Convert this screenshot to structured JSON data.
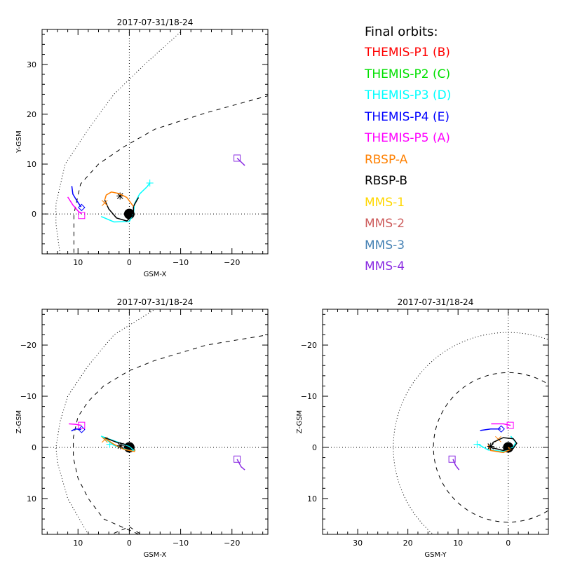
{
  "legend": {
    "title": "Final orbits:",
    "items": [
      {
        "label": "THEMIS-P1 (B)",
        "color": "#ff0000"
      },
      {
        "label": "THEMIS-P2 (C)",
        "color": "#00e000"
      },
      {
        "label": "THEMIS-P3 (D)",
        "color": "#00ffff"
      },
      {
        "label": "THEMIS-P4 (E)",
        "color": "#0000ff"
      },
      {
        "label": "THEMIS-P5 (A)",
        "color": "#ff00ff"
      },
      {
        "label": "RBSP-A",
        "color": "#ff8000"
      },
      {
        "label": "RBSP-B",
        "color": "#000000"
      },
      {
        "label": "MMS-1",
        "color": "#ffd700"
      },
      {
        "label": "MMS-2",
        "color": "#cd5c5c"
      },
      {
        "label": "MMS-3",
        "color": "#4682b4"
      },
      {
        "label": "MMS-4",
        "color": "#8a2be2"
      }
    ]
  },
  "chart_data": [
    {
      "type": "line",
      "title": "2017-07-31/18-24",
      "xlabel": "GSM-X",
      "ylabel": "Y-GSM",
      "xlim": [
        17,
        -27
      ],
      "ylim": [
        37,
        -8
      ],
      "xticks": [
        10,
        0,
        -10,
        -20
      ],
      "yticks": [
        0,
        10,
        20,
        30
      ],
      "grid": "dotted zero lines",
      "series": [
        {
          "name": "THEMIS-P3 (D)",
          "color": "#00ffff",
          "points": [
            [
              5.5,
              -0.5
            ],
            [
              3,
              -1.6
            ],
            [
              0,
              -1.5
            ],
            [
              -0.8,
              0
            ],
            [
              -1,
              2
            ],
            [
              -2,
              4
            ],
            [
              -3.5,
              5.5
            ],
            [
              -4,
              6.2
            ]
          ],
          "end": [
            -4,
            6.2
          ],
          "marker": "plus"
        },
        {
          "name": "RBSP-B",
          "color": "#000000",
          "points": [
            [
              4.8,
              2.8
            ],
            [
              4,
              1
            ],
            [
              2.5,
              -0.8
            ],
            [
              0.5,
              -1.4
            ],
            [
              -0.8,
              -0.2
            ],
            [
              -0.8,
              1.5
            ],
            [
              -1.5,
              2.8
            ],
            [
              -1.8,
              3.3
            ]
          ],
          "end": [
            1.8,
            3.6
          ],
          "marker": "asterisk"
        },
        {
          "name": "RBSP-A",
          "color": "#ff8000",
          "points": [
            [
              4.8,
              2.8
            ],
            [
              4.5,
              3.8
            ],
            [
              3.5,
              4.4
            ],
            [
              2,
              4.1
            ],
            [
              0.5,
              3.3
            ],
            [
              -0.8,
              1.5
            ]
          ],
          "end": [
            4.8,
            2.2
          ],
          "marker": "x"
        },
        {
          "name": "THEMIS-P5 (A)",
          "color": "#ff00ff",
          "points": [
            [
              12,
              3.4
            ],
            [
              11,
              1.8
            ],
            [
              10,
              0.6
            ],
            [
              9.3,
              0
            ]
          ],
          "end": [
            9.3,
            -0.3
          ],
          "marker": "square"
        },
        {
          "name": "THEMIS-P4 (E)",
          "color": "#0000ff",
          "points": [
            [
              11.2,
              5.6
            ],
            [
              11,
              4
            ],
            [
              10.2,
              2.6
            ],
            [
              9.4,
              1.4
            ]
          ],
          "end": [
            9.3,
            1.3
          ],
          "marker": "diamond"
        },
        {
          "name": "MMS-4",
          "color": "#8a2be2",
          "points": [
            [
              -22.5,
              9.7
            ],
            [
              -21.5,
              10.7
            ],
            [
              -21,
              11.2
            ]
          ],
          "end": [
            -21,
            11.2
          ],
          "marker": "square"
        }
      ],
      "boundaries": {
        "magnetopause": [
          [
            10.8,
            -7.8
          ],
          [
            10.8,
            0
          ],
          [
            9.5,
            6
          ],
          [
            6,
            10
          ],
          [
            1,
            13.5
          ],
          [
            -5,
            17
          ],
          [
            -15,
            20.3
          ],
          [
            -27,
            23.7
          ]
        ],
        "bow_shock": [
          [
            13.5,
            -8
          ],
          [
            14.3,
            -2
          ],
          [
            14.3,
            2
          ],
          [
            12.5,
            10
          ],
          [
            8,
            17
          ],
          [
            3,
            24
          ],
          [
            -3,
            30
          ],
          [
            -10,
            36.5
          ]
        ]
      }
    },
    {
      "type": "line",
      "title": "2017-07-31/18-24",
      "xlabel": "GSM-X",
      "ylabel": "Z-GSM",
      "xlim": [
        17,
        -27
      ],
      "ylim": [
        -27,
        17
      ],
      "xticks": [
        10,
        0,
        -10,
        -20
      ],
      "yticks": [
        10,
        0,
        -10,
        -20
      ],
      "grid": "dotted zero lines",
      "series": [
        {
          "name": "THEMIS-P3 (D)",
          "color": "#00ffff",
          "points": [
            [
              5.5,
              -2.2
            ],
            [
              3,
              -1.3
            ],
            [
              0,
              -0.2
            ],
            [
              -1,
              0.6
            ],
            [
              0,
              0.6
            ],
            [
              3,
              -0.4
            ],
            [
              5.5,
              -2.2
            ]
          ],
          "end": [
            3.8,
            -0.6
          ],
          "marker": "plus"
        },
        {
          "name": "RBSP-A",
          "color": "#ff8000",
          "points": [
            [
              4.8,
              -1.8
            ],
            [
              3,
              -0.6
            ],
            [
              1,
              0.4
            ],
            [
              -1,
              0.8
            ],
            [
              -1.1,
              0.4
            ]
          ],
          "end": [
            4.8,
            -1.5
          ],
          "marker": "x"
        },
        {
          "name": "RBSP-B",
          "color": "#000000",
          "points": [
            [
              4.8,
              -1.9
            ],
            [
              2.5,
              -1
            ],
            [
              0,
              -0.4
            ],
            [
              -1,
              0.4
            ]
          ],
          "end": [
            1.7,
            -0.3
          ],
          "marker": "asterisk"
        },
        {
          "name": "THEMIS-P4 (E)",
          "color": "#0000ff",
          "points": [
            [
              11.3,
              -3.2
            ],
            [
              10.5,
              -3.6
            ],
            [
              9.4,
              -3.5
            ]
          ],
          "end": [
            9.3,
            -3.5
          ],
          "marker": "diamond"
        },
        {
          "name": "THEMIS-P5 (A)",
          "color": "#ff00ff",
          "points": [
            [
              11.8,
              -4.6
            ],
            [
              10.5,
              -4.5
            ],
            [
              9.3,
              -4.3
            ]
          ],
          "end": [
            9.3,
            -4.3
          ],
          "marker": "square"
        },
        {
          "name": "MMS-4",
          "color": "#8a2be2",
          "points": [
            [
              -22.5,
              4.4
            ],
            [
              -21.8,
              3.8
            ],
            [
              -21,
              2.3
            ]
          ],
          "end": [
            -21,
            2.3
          ],
          "marker": "square"
        }
      ],
      "boundaries": {
        "magnetopause": [
          [
            3,
            16.8
          ],
          [
            0,
            15.5
          ],
          [
            -3,
            17.5
          ],
          [
            5,
            14
          ],
          [
            8,
            10
          ],
          [
            10,
            6
          ],
          [
            10.9,
            2
          ],
          [
            10.9,
            -2
          ],
          [
            10,
            -6
          ],
          [
            8,
            -9
          ],
          [
            5,
            -12
          ],
          [
            0,
            -15
          ],
          [
            -5,
            -17
          ],
          [
            -15,
            -20
          ],
          [
            -27,
            -22
          ]
        ],
        "bow_shock": [
          [
            8,
            17
          ],
          [
            12,
            10
          ],
          [
            14,
            3
          ],
          [
            14.3,
            0
          ],
          [
            13.5,
            -5
          ],
          [
            12,
            -10
          ],
          [
            8,
            -16
          ],
          [
            3,
            -22
          ],
          [
            -5,
            -27
          ]
        ]
      }
    },
    {
      "type": "line",
      "title": "2017-07-31/18-24",
      "xlabel": "GSM-Y",
      "ylabel": "Z-GSM",
      "xlim": [
        37,
        -8
      ],
      "ylim": [
        -27,
        17
      ],
      "xticks": [
        30,
        20,
        10,
        0
      ],
      "yticks": [
        10,
        0,
        -10,
        -20
      ],
      "grid": "dotted zero lines",
      "series": [
        {
          "name": "THEMIS-P3 (D)",
          "color": "#00ffff",
          "points": [
            [
              6,
              -0.6
            ],
            [
              4,
              0.5
            ],
            [
              1,
              0.8
            ],
            [
              -1,
              0
            ],
            [
              -1.5,
              -1
            ],
            [
              -0.5,
              -2.2
            ]
          ],
          "end": [
            6.2,
            -0.6
          ],
          "marker": "plus"
        },
        {
          "name": "RBSP-A",
          "color": "#ff8000",
          "points": [
            [
              4,
              -0.5
            ],
            [
              3.5,
              0.6
            ],
            [
              1,
              1
            ],
            [
              -0.5,
              0.4
            ],
            [
              0,
              0
            ]
          ],
          "end": [
            2,
            -1.6
          ],
          "marker": "x"
        },
        {
          "name": "RBSP-B",
          "color": "#000000",
          "points": [
            [
              3.5,
              0
            ],
            [
              3,
              -1
            ],
            [
              1,
              -1.9
            ],
            [
              -1,
              -1.7
            ],
            [
              -1.7,
              -0.8
            ],
            [
              -1,
              0.2
            ],
            [
              1,
              0.6
            ],
            [
              3.5,
              0
            ]
          ],
          "end": [
            3.5,
            -0.2
          ],
          "marker": "asterisk"
        },
        {
          "name": "THEMIS-P4 (E)",
          "color": "#0000ff",
          "points": [
            [
              5.6,
              -3.3
            ],
            [
              3.5,
              -3.6
            ],
            [
              1.5,
              -3.6
            ]
          ],
          "end": [
            1.4,
            -3.6
          ],
          "marker": "diamond"
        },
        {
          "name": "THEMIS-P5 (A)",
          "color": "#ff00ff",
          "points": [
            [
              3.4,
              -4.6
            ],
            [
              1,
              -4.6
            ],
            [
              -0.5,
              -4.3
            ]
          ],
          "end": [
            -0.4,
            -4.3
          ],
          "marker": "square"
        },
        {
          "name": "MMS-4",
          "color": "#8a2be2",
          "points": [
            [
              9.8,
              4.4
            ],
            [
              10.5,
              3.5
            ],
            [
              11,
              2.3
            ]
          ],
          "end": [
            11.2,
            2.3
          ],
          "marker": "square"
        }
      ],
      "boundaries": {
        "magnetopause_radius": 14.9,
        "bow_shock_radius": 22.9
      }
    }
  ]
}
